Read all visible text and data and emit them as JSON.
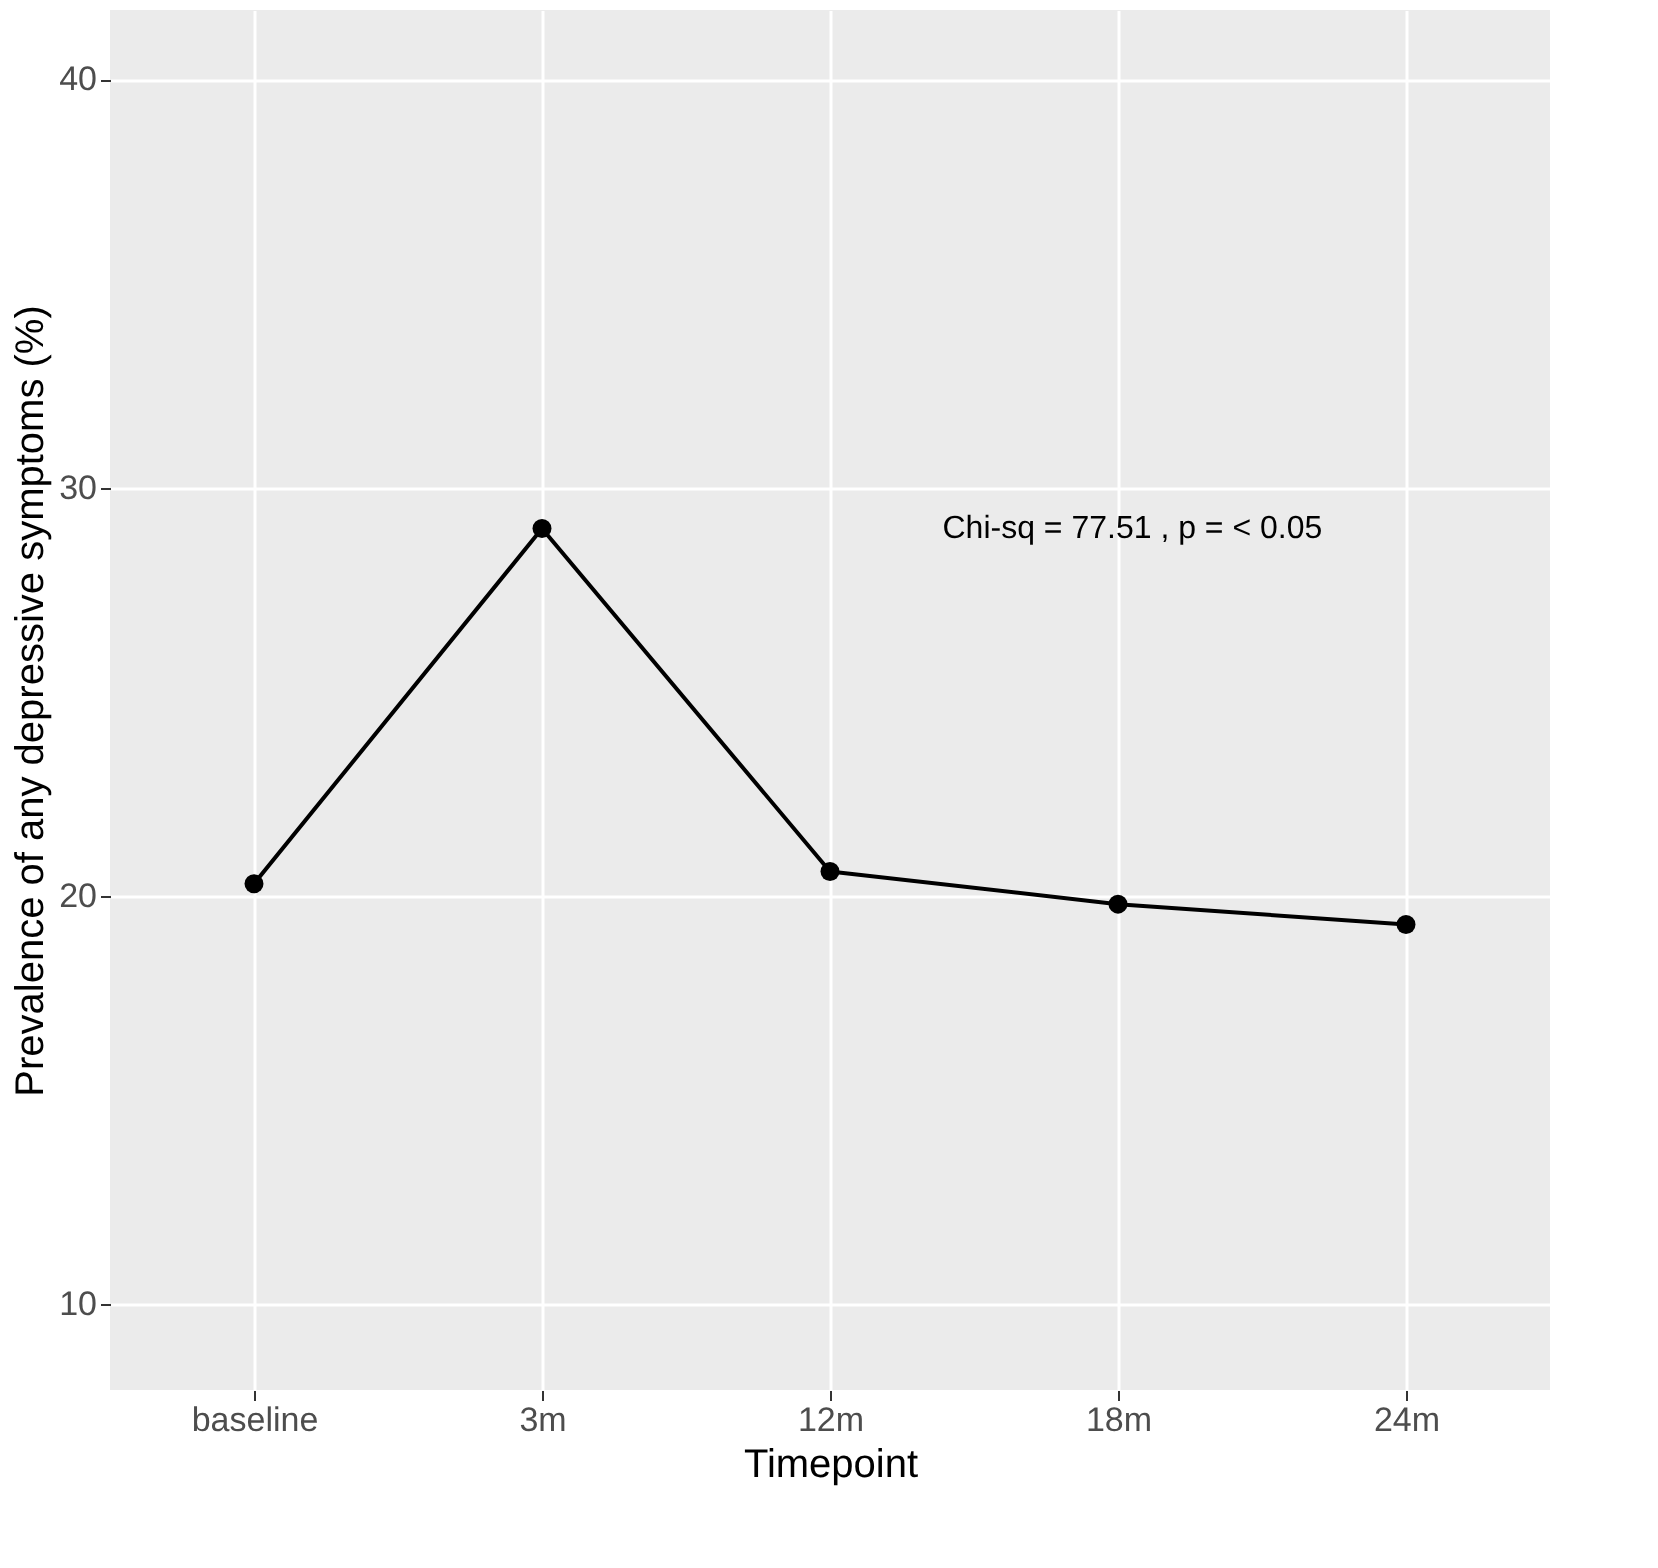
{
  "chart_data": {
    "type": "line",
    "xlabel": "Timepoint",
    "ylabel": "Prevalence of any depressive symptoms (%)",
    "categories": [
      "baseline",
      "3m",
      "12m",
      "18m",
      "24m"
    ],
    "series": [
      {
        "color": "#000000",
        "values": [
          20.3,
          29.0,
          20.6,
          19.8,
          19.3
        ]
      }
    ],
    "ylim": [
      7.9,
      41.7
    ],
    "yticks": [
      10,
      20,
      30,
      40
    ],
    "grid": true,
    "marker": "circle",
    "line_style": "solid",
    "annotations": [
      "Chi-sq = 77.51 , p = < 0.05"
    ]
  }
}
